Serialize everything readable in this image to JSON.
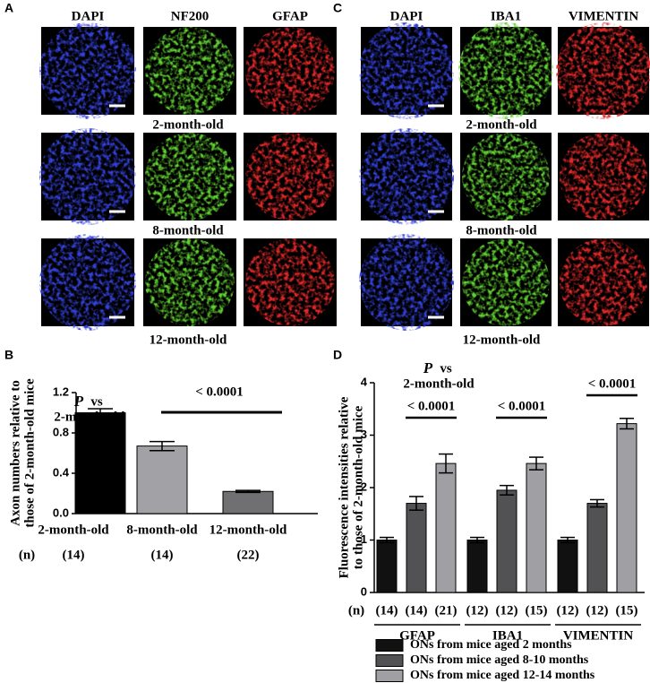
{
  "panels": [
    {
      "label": "A",
      "columns": [
        "DAPI",
        "NF200",
        "GFAP"
      ],
      "rows": [
        "2-month-old",
        "8-month-old",
        "12-month-old"
      ],
      "colors": [
        "#3340d8",
        "#5fcf30",
        "#e02828"
      ]
    },
    {
      "label": "C",
      "columns": [
        "DAPI",
        "IBA1",
        "VIMENTIN"
      ],
      "rows": [
        "2-month-old",
        "8-month-old",
        "12-month-old"
      ],
      "colors": [
        "#3340d8",
        "#5fcf30",
        "#e02828"
      ]
    }
  ],
  "chart_data": [
    {
      "type": "bar",
      "panel": "B",
      "ylabel": [
        "Axon numbers relative to",
        "those of 2-month-old mice"
      ],
      "categories": [
        "2-month-old",
        "8-month-old",
        "12-month-old"
      ],
      "values": [
        1.0,
        0.67,
        0.22
      ],
      "errors": [
        0.04,
        0.045,
        0.01
      ],
      "colors": [
        "#000000",
        "#a2a2a6",
        "#707072"
      ],
      "n_label": "(n)",
      "n_values": [
        "(14)",
        "(14)",
        "(22)"
      ],
      "comparison": [
        "P",
        "vs",
        "2-month-old"
      ],
      "significance": "< 0.0001",
      "ylim": [
        0,
        1.2
      ],
      "yticks": [
        {
          "value": 0,
          "label": "0.0"
        },
        0.4,
        0.8,
        1.2
      ]
    },
    {
      "type": "grouped_bar",
      "panel": "D",
      "ylabel": [
        "Fluorescence intensities relative",
        "to those of 2-month-old mice"
      ],
      "groups": [
        "GFAP",
        "IBA1",
        "VIMENTIN"
      ],
      "series": [
        {
          "name": "ONs from mice aged 2 months",
          "color": "#111111",
          "values": [
            1.0,
            1.0,
            1.0
          ],
          "errors": [
            0.05,
            0.05,
            0.05
          ],
          "n_values": [
            "(14)",
            "(12)",
            "(12)"
          ]
        },
        {
          "name": "ONs from mice aged 8-10 months",
          "color": "#525254",
          "values": [
            1.7,
            1.95,
            1.7
          ],
          "errors": [
            0.13,
            0.09,
            0.07
          ],
          "n_values": [
            "(14)",
            "(12)",
            "(12)"
          ]
        },
        {
          "name": "ONs from mice aged 12-14 months",
          "color": "#a0a0a4",
          "values": [
            2.46,
            2.46,
            3.22
          ],
          "errors": [
            0.18,
            0.12,
            0.1
          ],
          "n_values": [
            "(21)",
            "(15)",
            "(15)"
          ]
        }
      ],
      "n_label": "(n)",
      "comparison": [
        "P",
        "vs",
        "2-month-old"
      ],
      "significance": [
        "< 0.0001",
        "< 0.0001",
        "< 0.0001"
      ],
      "ylim": [
        0,
        4
      ],
      "yticks": [
        0,
        1,
        2,
        3,
        4
      ]
    }
  ]
}
